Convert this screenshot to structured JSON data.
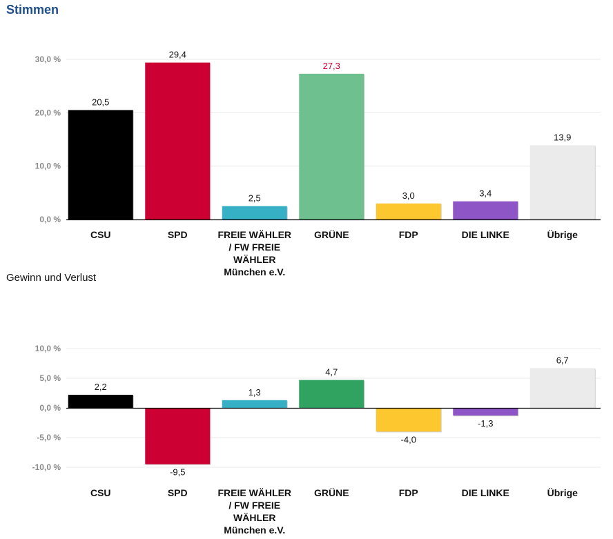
{
  "titles": {
    "main": "Stimmen",
    "sub": "Gewinn und Verlust"
  },
  "chart_data": [
    {
      "type": "bar",
      "title": "Stimmen",
      "categories": [
        "CSU",
        "SPD",
        "FREIE WÄHLER / FW FREIE WÄHLER München e.V.",
        "GRÜNE",
        "FDP",
        "DIE LINKE",
        "Übrige"
      ],
      "category_lines": [
        [
          "CSU"
        ],
        [
          "SPD"
        ],
        [
          "FREIE WÄHLER",
          "/ FW FREIE",
          "WÄHLER",
          "München e.V."
        ],
        [
          "GRÜNE"
        ],
        [
          "FDP"
        ],
        [
          "DIE LINKE"
        ],
        [
          "Übrige"
        ]
      ],
      "values": [
        20.5,
        29.4,
        2.5,
        27.3,
        3.0,
        3.4,
        13.9
      ],
      "value_labels": [
        "20,5",
        "29,4",
        "2,5",
        "27,3",
        "3,0",
        "3,4",
        "13,9"
      ],
      "value_label_colors": [
        "#111111",
        "#111111",
        "#111111",
        "#cc0033",
        "#111111",
        "#111111",
        "#111111"
      ],
      "colors": [
        "#000000",
        "#cc0033",
        "#35b0c4",
        "#6ec08e",
        "#fdc82f",
        "#8e55c6",
        "#ebebeb"
      ],
      "ylim": [
        0,
        30
      ],
      "yticks": [
        0,
        10,
        20,
        30
      ],
      "ytick_labels": [
        "0,0 %",
        "10,0 %",
        "20,0 %",
        "30,0 %"
      ],
      "xlabel": "",
      "ylabel": "",
      "grid": true,
      "legend": "none"
    },
    {
      "type": "bar",
      "title": "Gewinn und Verlust",
      "categories": [
        "CSU",
        "SPD",
        "FREIE WÄHLER / FW FREIE WÄHLER München e.V.",
        "GRÜNE",
        "FDP",
        "DIE LINKE",
        "Übrige"
      ],
      "category_lines": [
        [
          "CSU"
        ],
        [
          "SPD"
        ],
        [
          "FREIE WÄHLER",
          "/ FW FREIE",
          "WÄHLER",
          "München e.V."
        ],
        [
          "GRÜNE"
        ],
        [
          "FDP"
        ],
        [
          "DIE LINKE"
        ],
        [
          "Übrige"
        ]
      ],
      "values": [
        2.2,
        -9.5,
        1.3,
        4.7,
        -4.0,
        -1.3,
        6.7
      ],
      "value_labels": [
        "2,2",
        "-9,5",
        "1,3",
        "4,7",
        "-4,0",
        "-1,3",
        "6,7"
      ],
      "value_label_colors": [
        "#111111",
        "#111111",
        "#111111",
        "#111111",
        "#111111",
        "#111111",
        "#111111"
      ],
      "colors": [
        "#000000",
        "#cc0033",
        "#35b0c4",
        "#2fa35f",
        "#fdc82f",
        "#8e55c6",
        "#ebebeb"
      ],
      "ylim": [
        -10,
        10
      ],
      "yticks": [
        -10,
        -5,
        0,
        5,
        10
      ],
      "ytick_labels": [
        "-10,0 %",
        "-5,0 %",
        "0,0 %",
        "5,0 %",
        "10,0 %"
      ],
      "xlabel": "",
      "ylabel": "",
      "grid": true,
      "legend": "none"
    }
  ]
}
